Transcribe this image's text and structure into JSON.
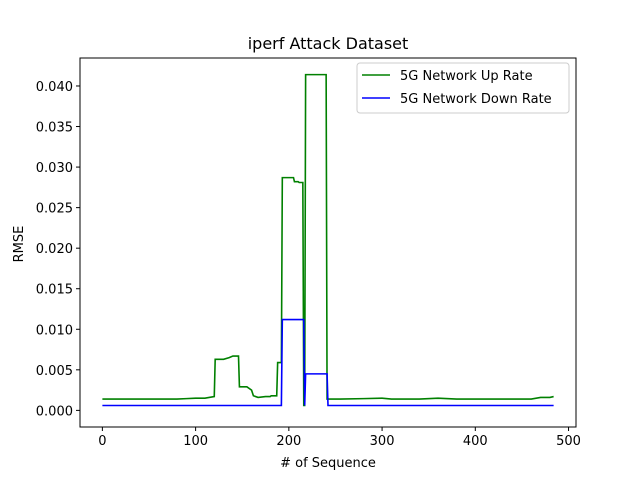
{
  "chart_data": {
    "type": "line",
    "title": "iperf Attack Dataset",
    "xlabel": "# of Sequence",
    "ylabel": "RMSE",
    "xlim": [
      -24,
      508
    ],
    "ylim": [
      -0.00205,
      0.04345
    ],
    "x_ticks": [
      0,
      100,
      200,
      300,
      400,
      500
    ],
    "x_tick_labels": [
      "0",
      "100",
      "200",
      "300",
      "400",
      "500"
    ],
    "y_ticks": [
      0.0,
      0.005,
      0.01,
      0.015,
      0.02,
      0.025,
      0.03,
      0.035,
      0.04
    ],
    "y_tick_labels": [
      "0.000",
      "0.005",
      "0.010",
      "0.015",
      "0.020",
      "0.025",
      "0.030",
      "0.035",
      "0.040"
    ],
    "grid": false,
    "legend_position": "top-right",
    "series": [
      {
        "name": "5G Network Up Rate",
        "color": "#008000",
        "x": [
          0,
          80,
          90,
          100,
          110,
          120,
          121,
          130,
          136,
          140,
          146,
          147,
          155,
          160,
          162,
          167,
          175,
          180,
          181,
          187,
          188,
          192,
          193,
          205,
          206,
          210,
          211,
          215,
          216,
          217,
          218,
          240,
          241,
          242,
          243,
          255,
          280,
          300,
          310,
          340,
          360,
          380,
          400,
          440,
          460,
          470,
          480,
          484
        ],
        "y": [
          0.0014,
          0.0014,
          0.00145,
          0.0015,
          0.0015,
          0.0017,
          0.0063,
          0.0063,
          0.0065,
          0.0067,
          0.0067,
          0.0029,
          0.0029,
          0.0025,
          0.0018,
          0.0016,
          0.0017,
          0.0017,
          0.0018,
          0.0018,
          0.0059,
          0.0059,
          0.0287,
          0.0287,
          0.0282,
          0.0282,
          0.0281,
          0.0281,
          0.0006,
          0.0006,
          0.0414,
          0.0414,
          0.0014,
          0.0014,
          0.0014,
          0.0014,
          0.00145,
          0.0015,
          0.0014,
          0.0014,
          0.0015,
          0.0014,
          0.0014,
          0.0014,
          0.0014,
          0.0016,
          0.0016,
          0.0017
        ]
      },
      {
        "name": "5G Network Down Rate",
        "color": "#0000ff",
        "x": [
          0,
          100,
          150,
          192,
          193,
          216,
          217,
          218,
          241,
          242,
          300,
          400,
          484
        ],
        "y": [
          0.0006,
          0.0006,
          0.0006,
          0.0006,
          0.0112,
          0.0112,
          0.0006,
          0.0045,
          0.0045,
          0.0006,
          0.0006,
          0.0006,
          0.0006
        ]
      }
    ]
  }
}
